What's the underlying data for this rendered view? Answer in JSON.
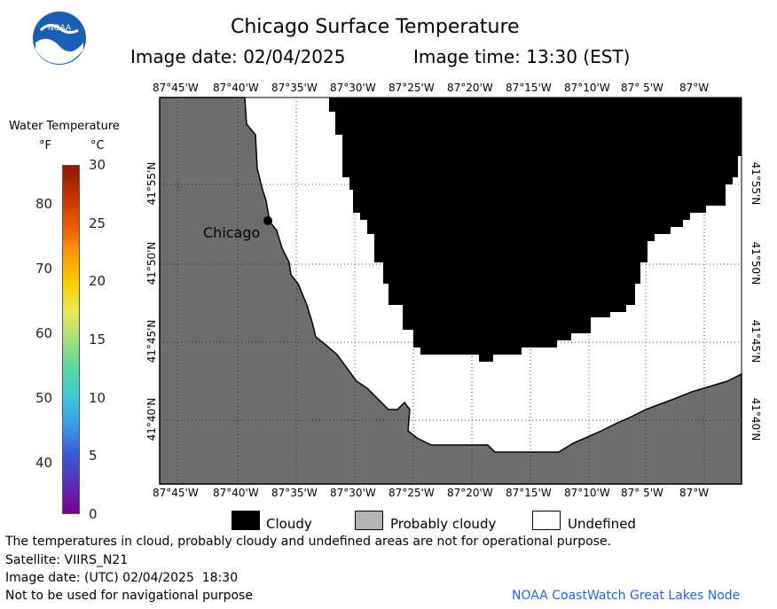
{
  "header": {
    "title": "Chicago Surface Temperature",
    "image_date": "Image date: 02/04/2025",
    "image_time": "Image time: 13:30 (EST)"
  },
  "logo": {
    "text": "NOAA"
  },
  "scale": {
    "title": "Water Temperature",
    "unit_f": "°F",
    "unit_c": "°C",
    "f_labels": [
      "80",
      "70",
      "60",
      "50",
      "40"
    ],
    "c_labels": [
      "30",
      "25",
      "20",
      "15",
      "10",
      "5",
      "0"
    ]
  },
  "map": {
    "lon_labels": [
      "87°45'W",
      "87°40'W",
      "87°35'W",
      "87°30'W",
      "87°25'W",
      "87°20'W",
      "87°15'W",
      "87°10'W",
      "87° 5'W",
      "87°W"
    ],
    "lat_labels": [
      "41°55'N",
      "41°50'N",
      "41°45'N",
      "41°40'N"
    ],
    "city_label": "Chicago",
    "colors": {
      "land": "#6e6e6e",
      "cloudy": "#000000",
      "undefined": "#ffffff"
    }
  },
  "legend": {
    "cloudy": "Cloudy",
    "probably_cloudy": "Probably cloudy",
    "undefined": "Undefined"
  },
  "footer": {
    "disclaimer": "The temperatures in cloud, probably cloudy and undefined areas are not for operational purpose.",
    "satellite": "Satellite: VIIRS_N21",
    "utc_date": "Image date: (UTC) 02/04/2025  18:30",
    "nav_warning": "Not to be used for navigational purpose",
    "credit": "NOAA CoastWatch Great Lakes Node"
  }
}
